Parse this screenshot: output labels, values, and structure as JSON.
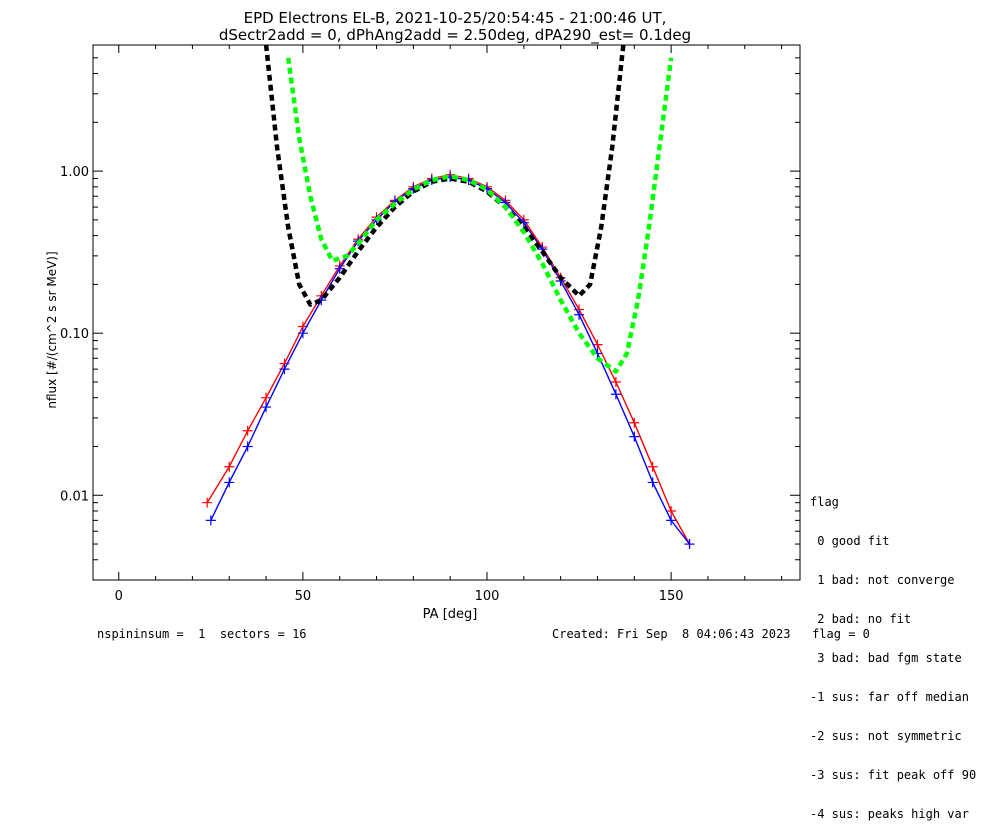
{
  "header": {
    "title": "EPD Electrons EL-B, 2021-10-25/20:54:45 - 21:00:46 UT,",
    "subtitle": "dSectr2add = 0, dPhAng2add = 2.50deg, dPA290_est=   0.1deg"
  },
  "footer": {
    "left": "nspininsum =  1  sectors = 16",
    "right": "Created: Fri Sep  8 04:06:43 2023   flag = 0"
  },
  "legend": {
    "title": "flag",
    "items": [
      " 0 good fit",
      " 1 bad: not converge",
      " 2 bad: no fit",
      " 3 bad: bad fgm state",
      "-1 sus: far off median",
      "-2 sus: not symmetric",
      "-3 sus: fit peak off 90",
      "-4 sus: peaks high var"
    ]
  },
  "colors": {
    "series_a": "#0000ff",
    "series_b": "#ff0000",
    "fit_black": "#000000",
    "fit_green": "#00ff00"
  },
  "chart_data": {
    "type": "line",
    "xlabel": "PA [deg]",
    "ylabel": "nflux [#/(cm^2 s sr MeV)]",
    "xlim": [
      -7,
      185
    ],
    "ylim": [
      0.003,
      6.0
    ],
    "yscale": "log",
    "xticks": [
      0,
      50,
      100,
      150
    ],
    "xtick_labels": [
      "0",
      "50",
      "100",
      "150"
    ],
    "yticks": [
      0.01,
      0.1,
      1.0
    ],
    "ytick_labels": [
      "0.01",
      "0.10",
      "1.00"
    ],
    "grid": false,
    "series": [
      {
        "color": "blue",
        "marker": "plus",
        "x": [
          25,
          30,
          35,
          40,
          45,
          50,
          55,
          60,
          65,
          70,
          75,
          80,
          85,
          90,
          95,
          100,
          105,
          110,
          115,
          120,
          125,
          130,
          135,
          140,
          145,
          150,
          155
        ],
        "y": [
          0.007,
          0.012,
          0.02,
          0.035,
          0.06,
          0.1,
          0.16,
          0.25,
          0.37,
          0.5,
          0.65,
          0.78,
          0.88,
          0.92,
          0.88,
          0.78,
          0.64,
          0.48,
          0.33,
          0.21,
          0.13,
          0.075,
          0.042,
          0.023,
          0.012,
          0.007,
          0.005
        ]
      },
      {
        "color": "red",
        "marker": "plus",
        "x": [
          24,
          30,
          35,
          40,
          45,
          50,
          55,
          60,
          65,
          70,
          75,
          80,
          85,
          90,
          95,
          100,
          105,
          110,
          115,
          120,
          125,
          130,
          135,
          140,
          145,
          150,
          155
        ],
        "y": [
          0.009,
          0.015,
          0.025,
          0.04,
          0.065,
          0.11,
          0.17,
          0.26,
          0.38,
          0.52,
          0.66,
          0.8,
          0.9,
          0.95,
          0.9,
          0.8,
          0.66,
          0.5,
          0.34,
          0.22,
          0.14,
          0.085,
          0.05,
          0.028,
          0.015,
          0.008,
          0.005
        ]
      },
      {
        "color": "black",
        "style": "dashed",
        "x": [
          40,
          43,
          46,
          49,
          52,
          55,
          60,
          65,
          70,
          75,
          80,
          85,
          90,
          95,
          100,
          105,
          110,
          115,
          120,
          125,
          128,
          131,
          134,
          137
        ],
        "y": [
          6.0,
          1.4,
          0.45,
          0.2,
          0.15,
          0.16,
          0.22,
          0.32,
          0.45,
          0.6,
          0.75,
          0.86,
          0.9,
          0.86,
          0.75,
          0.6,
          0.45,
          0.32,
          0.22,
          0.17,
          0.2,
          0.45,
          1.4,
          6.0
        ]
      },
      {
        "color": "green",
        "style": "dashed",
        "x": [
          46,
          49,
          52,
          55,
          58,
          62,
          66,
          70,
          75,
          80,
          85,
          90,
          95,
          100,
          105,
          110,
          115,
          120,
          125,
          130,
          135,
          138,
          141,
          144,
          147,
          150
        ],
        "y": [
          5.0,
          1.6,
          0.7,
          0.38,
          0.28,
          0.3,
          0.38,
          0.5,
          0.63,
          0.77,
          0.88,
          0.93,
          0.88,
          0.77,
          0.6,
          0.42,
          0.27,
          0.16,
          0.1,
          0.07,
          0.058,
          0.075,
          0.16,
          0.45,
          1.5,
          5.0
        ]
      }
    ]
  }
}
